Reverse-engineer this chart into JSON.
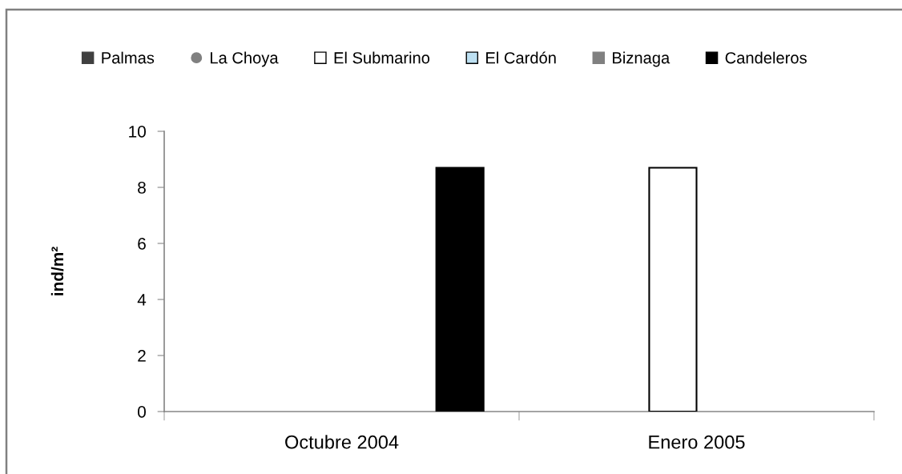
{
  "chart_data": {
    "type": "bar",
    "ylabel": "ind/m²",
    "categories": [
      "Octubre 2004",
      "Enero 2005"
    ],
    "series": [
      {
        "name": "Palmas",
        "color": "#404040",
        "values": [
          null,
          null
        ]
      },
      {
        "name": "La Choya",
        "type": "scatter",
        "color": "#808080",
        "values": [
          null,
          null
        ]
      },
      {
        "name": "El Submarino",
        "color": "#ffffff",
        "values": [
          null,
          8.7
        ]
      },
      {
        "name": "El Cardón",
        "color": "#bde0f2",
        "values": [
          null,
          null
        ]
      },
      {
        "name": "Biznaga",
        "color": "#808080",
        "values": [
          null,
          null
        ]
      },
      {
        "name": "Candeleros",
        "color": "#000000",
        "values": [
          8.7,
          null
        ]
      }
    ],
    "ylim": [
      0,
      10
    ],
    "yticks": [
      0,
      2,
      4,
      6,
      8,
      10
    ],
    "marker": "circle",
    "grid": false,
    "legend": "top"
  }
}
